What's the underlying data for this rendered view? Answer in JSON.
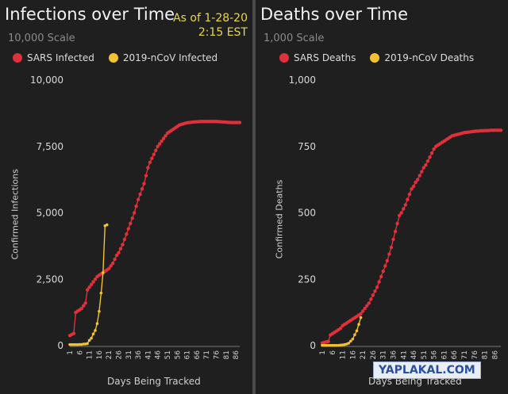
{
  "chart_data": [
    {
      "type": "line",
      "title": "Infections over Time",
      "subtitle": "10,000 Scale",
      "annotation": [
        "As of 1-28-20",
        "2:15 EST"
      ],
      "xlabel": "Days Being Tracked",
      "ylabel": "Confirmed Infections",
      "ylim": [
        0,
        10000
      ],
      "yticks": [
        0,
        2500,
        5000,
        7500,
        10000
      ],
      "ytick_labels": [
        "0",
        "2,500",
        "5,000",
        "7,500",
        "10,000"
      ],
      "xlim": [
        1,
        88
      ],
      "xticks": [
        1,
        6,
        11,
        16,
        21,
        26,
        31,
        36,
        41,
        46,
        51,
        56,
        61,
        66,
        71,
        76,
        81,
        86
      ],
      "grid": false,
      "legend_position": "top",
      "series": [
        {
          "name": "SARS Infected",
          "color": "#e0303c",
          "x": [
            1,
            2,
            3,
            4,
            5,
            6,
            7,
            8,
            9,
            10,
            11,
            12,
            13,
            14,
            15,
            16,
            17,
            18,
            19,
            20,
            21,
            22,
            23,
            24,
            25,
            26,
            27,
            28,
            29,
            30,
            31,
            32,
            33,
            34,
            35,
            36,
            37,
            38,
            39,
            40,
            41,
            42,
            43,
            44,
            45,
            46,
            47,
            48,
            49,
            50,
            51,
            52,
            53,
            54,
            55,
            56,
            57,
            58,
            59,
            60,
            61,
            62,
            63,
            64,
            65,
            66,
            67,
            68,
            69,
            70,
            71,
            72,
            73,
            74,
            75,
            76,
            77,
            78,
            79,
            80,
            81,
            82,
            83,
            84,
            85,
            86,
            87,
            88
          ],
          "y": [
            380,
            420,
            460,
            1250,
            1300,
            1350,
            1400,
            1500,
            1600,
            2100,
            2200,
            2300,
            2400,
            2500,
            2600,
            2650,
            2700,
            2750,
            2800,
            2850,
            2900,
            3000,
            3100,
            3250,
            3400,
            3500,
            3650,
            3800,
            4000,
            4200,
            4400,
            4600,
            4800,
            5000,
            5250,
            5500,
            5700,
            5900,
            6100,
            6400,
            6700,
            6900,
            7050,
            7200,
            7350,
            7500,
            7600,
            7700,
            7800,
            7900,
            8000,
            8050,
            8100,
            8150,
            8200,
            8250,
            8300,
            8330,
            8350,
            8370,
            8390,
            8400,
            8410,
            8420,
            8425,
            8430,
            8435,
            8440,
            8440,
            8440,
            8440,
            8440,
            8440,
            8440,
            8440,
            8440,
            8435,
            8430,
            8425,
            8420,
            8415,
            8410,
            8405,
            8400,
            8400,
            8400,
            8400,
            8400
          ]
        },
        {
          "name": "2019-nCoV Infected",
          "color": "#f2c230",
          "x": [
            1,
            2,
            3,
            4,
            5,
            6,
            7,
            8,
            9,
            10,
            11,
            12,
            13,
            14,
            15,
            16,
            17,
            18,
            19,
            20
          ],
          "y": [
            41,
            41,
            41,
            41,
            41,
            45,
            45,
            59,
            62,
            80,
            200,
            280,
            440,
            570,
            830,
            1290,
            1980,
            2744,
            4515,
            4550
          ]
        }
      ]
    },
    {
      "type": "line",
      "title": "Deaths over Time",
      "subtitle": "1,000 Scale",
      "xlabel": "Days Being Tracked",
      "ylabel": "Confirmed Deaths",
      "ylim": [
        0,
        1000
      ],
      "yticks": [
        0,
        250,
        500,
        750,
        1000
      ],
      "ytick_labels": [
        "0",
        "250",
        "500",
        "750",
        "1,000"
      ],
      "xlim": [
        1,
        89
      ],
      "xticks": [
        1,
        6,
        11,
        16,
        21,
        26,
        31,
        36,
        41,
        46,
        51,
        56,
        61,
        66,
        71,
        76,
        81,
        86
      ],
      "grid": false,
      "legend_position": "top",
      "series": [
        {
          "name": "SARS Deaths",
          "color": "#e0303c",
          "x": [
            1,
            2,
            3,
            4,
            5,
            6,
            7,
            8,
            9,
            10,
            11,
            12,
            13,
            14,
            15,
            16,
            17,
            18,
            19,
            20,
            21,
            22,
            23,
            24,
            25,
            26,
            27,
            28,
            29,
            30,
            31,
            32,
            33,
            34,
            35,
            36,
            37,
            38,
            39,
            40,
            41,
            42,
            43,
            44,
            45,
            46,
            47,
            48,
            49,
            50,
            51,
            52,
            53,
            54,
            55,
            56,
            57,
            58,
            59,
            60,
            61,
            62,
            63,
            64,
            65,
            66,
            67,
            68,
            69,
            70,
            71,
            72,
            73,
            74,
            75,
            76,
            77,
            78,
            79,
            80,
            81,
            82,
            83,
            84,
            85,
            86,
            87,
            88,
            89
          ],
          "y": [
            10,
            12,
            14,
            16,
            40,
            45,
            50,
            55,
            60,
            65,
            75,
            80,
            85,
            90,
            95,
            100,
            105,
            110,
            115,
            120,
            130,
            140,
            150,
            160,
            175,
            190,
            205,
            220,
            240,
            260,
            280,
            300,
            320,
            345,
            370,
            400,
            430,
            460,
            490,
            500,
            515,
            530,
            550,
            570,
            590,
            600,
            615,
            625,
            640,
            655,
            670,
            680,
            695,
            710,
            725,
            740,
            750,
            755,
            760,
            765,
            770,
            775,
            780,
            785,
            790,
            792,
            794,
            796,
            798,
            800,
            802,
            803,
            804,
            805,
            806,
            807,
            808,
            808,
            809,
            809,
            810,
            810,
            810,
            811,
            811,
            811,
            811,
            811,
            811
          ]
        },
        {
          "name": "2019-nCoV Deaths",
          "color": "#f2c230",
          "x": [
            1,
            2,
            3,
            4,
            5,
            6,
            7,
            8,
            9,
            10,
            11,
            12,
            13,
            14,
            15,
            16,
            17,
            18,
            19,
            20
          ],
          "y": [
            1,
            1,
            1,
            1,
            1,
            1,
            1,
            1,
            1,
            2,
            3,
            4,
            6,
            9,
            17,
            25,
            41,
            56,
            80,
            106
          ]
        }
      ]
    }
  ],
  "watermark": "YAPLAKAL.COM"
}
